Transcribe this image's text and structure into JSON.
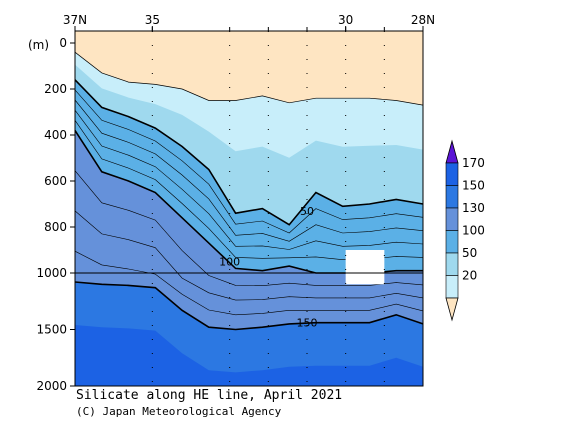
{
  "chart_data": {
    "type": "area",
    "title": "Silicate along HE line, April 2021",
    "credit": "(C) Japan Meteorological Agency",
    "xlabel": "",
    "ylabel": "(m)",
    "x_ticks": [
      {
        "lat": 37,
        "label": "37N"
      },
      {
        "lat": 35,
        "label": "35"
      },
      {
        "lat": 30,
        "label": "30"
      },
      {
        "lat": 28,
        "label": "28N"
      }
    ],
    "y_ticks": [
      0,
      200,
      400,
      600,
      800,
      1000,
      1500,
      2000
    ],
    "x_range_lat": [
      37,
      28
    ],
    "station_lats": [
      35,
      33,
      32,
      31,
      30,
      29
    ],
    "colorbar": {
      "levels": [
        20,
        50,
        100,
        130,
        150,
        170
      ],
      "tick_labels": [
        "20",
        "50",
        "100",
        "130",
        "150",
        "170"
      ]
    },
    "contours": [
      {
        "value": 20,
        "depths": [
          40,
          130,
          170,
          180,
          200,
          250,
          250,
          230,
          260,
          240,
          240,
          240,
          250,
          270
        ]
      },
      {
        "value": 50,
        "depths": [
          160,
          280,
          320,
          370,
          450,
          550,
          740,
          720,
          790,
          650,
          710,
          700,
          680,
          700
        ]
      },
      {
        "value": 100,
        "depths": [
          380,
          560,
          600,
          650,
          760,
          870,
          980,
          990,
          970,
          1000,
          1000,
          1000,
          990,
          990
        ]
      },
      {
        "value": 150,
        "depths": [
          1080,
          1100,
          1110,
          1130,
          1330,
          1480,
          1500,
          1480,
          1450,
          1440,
          1440,
          1440,
          1370,
          1450
        ]
      }
    ],
    "contour_labels": [
      {
        "value": 50,
        "lat": 31.0,
        "depth": 730
      },
      {
        "value": 100,
        "lat": 33.0,
        "depth": 950
      },
      {
        "value": 150,
        "lat": 31.0,
        "depth": 1440
      }
    ],
    "missing_region": {
      "lat_range": [
        30.0,
        29.0
      ],
      "depth_range": [
        900,
        1100
      ]
    },
    "colors": {
      "c0": "#FEE5C2",
      "c20": "#C8EEFA",
      "c50": "#9FD9EE",
      "c100": "#5BB0E6",
      "c130": "#6591DA",
      "c150": "#2C78E2",
      "c170": "#1C62E4",
      "cb_top": "#5B15D5"
    }
  }
}
